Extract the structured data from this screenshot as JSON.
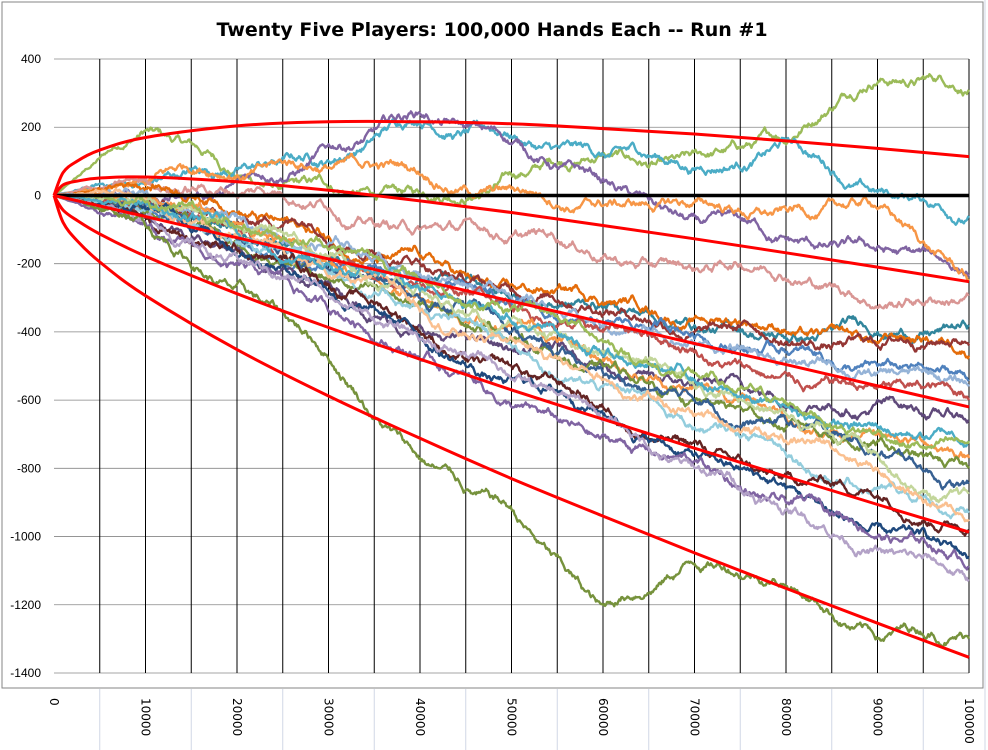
{
  "chart_data": {
    "type": "line",
    "title": "Twenty Five Players: 100,000 Hands Each -- Run #1",
    "xlabel": "",
    "ylabel": "",
    "xlim": [
      0,
      100000
    ],
    "ylim": [
      -1400,
      400
    ],
    "grid": {
      "vertical": true,
      "horizontal": true
    },
    "legend": "none",
    "x_ticks": [
      "0",
      "10000",
      "20000",
      "30000",
      "40000",
      "50000",
      "60000",
      "70000",
      "80000",
      "90000",
      "100000"
    ],
    "y_ticks": [
      "400",
      "200",
      "0",
      "-200",
      "-400",
      "-600",
      "-800",
      "-1000",
      "-1200",
      "-1400"
    ],
    "x": [
      0,
      10000,
      20000,
      30000,
      40000,
      50000,
      60000,
      70000,
      80000,
      90000,
      100000
    ],
    "series": [
      {
        "color": "#9BBB59",
        "values": [
          0,
          190,
          60,
          20,
          0,
          60,
          120,
          130,
          150,
          330,
          310
        ]
      },
      {
        "color": "#4BACC6",
        "values": [
          0,
          40,
          80,
          100,
          210,
          170,
          120,
          80,
          160,
          10,
          -60
        ]
      },
      {
        "color": "#8064A2",
        "values": [
          0,
          -20,
          40,
          150,
          240,
          150,
          50,
          -60,
          -130,
          -150,
          -230
        ]
      },
      {
        "color": "#F79646",
        "values": [
          0,
          30,
          60,
          80,
          60,
          20,
          -30,
          -20,
          -40,
          -40,
          -250
        ]
      },
      {
        "color": "#D99694",
        "values": [
          0,
          50,
          0,
          -40,
          -100,
          -120,
          -180,
          -220,
          -250,
          -330,
          -290
        ]
      },
      {
        "color": "#31859C",
        "values": [
          0,
          -30,
          -100,
          -200,
          -250,
          -300,
          -320,
          -380,
          -420,
          -400,
          -380
        ]
      },
      {
        "color": "#E46C0A",
        "values": [
          0,
          20,
          -50,
          -120,
          -180,
          -260,
          -320,
          -360,
          -400,
          -430,
          -470
        ]
      },
      {
        "color": "#943634",
        "values": [
          0,
          -10,
          -80,
          -150,
          -200,
          -280,
          -350,
          -400,
          -430,
          -440,
          -440
        ]
      },
      {
        "color": "#4F81BD",
        "values": [
          0,
          -40,
          -120,
          -200,
          -240,
          -320,
          -380,
          -420,
          -460,
          -500,
          -540
        ]
      },
      {
        "color": "#95B3D7",
        "values": [
          0,
          10,
          -60,
          -140,
          -230,
          -300,
          -380,
          -430,
          -480,
          -520,
          -560
        ]
      },
      {
        "color": "#C0504D",
        "values": [
          0,
          -20,
          -100,
          -180,
          -260,
          -330,
          -400,
          -460,
          -520,
          -560,
          -600
        ]
      },
      {
        "color": "#5F497A",
        "values": [
          0,
          -60,
          -150,
          -250,
          -380,
          -450,
          -500,
          -560,
          -620,
          -600,
          -660
        ]
      },
      {
        "color": "#F79646",
        "values": [
          0,
          0,
          -80,
          -200,
          -300,
          -380,
          -480,
          -560,
          -650,
          -700,
          -770
        ]
      },
      {
        "color": "#77933C",
        "values": [
          0,
          -50,
          -140,
          -240,
          -320,
          -420,
          -500,
          -600,
          -680,
          -720,
          -800
        ]
      },
      {
        "color": "#376092",
        "values": [
          0,
          -30,
          -130,
          -220,
          -300,
          -400,
          -520,
          -600,
          -660,
          -760,
          -840
        ]
      },
      {
        "color": "#C3D69B",
        "values": [
          0,
          -20,
          -100,
          -180,
          -270,
          -360,
          -460,
          -560,
          -640,
          -760,
          -870
        ]
      },
      {
        "color": "#93CDDD",
        "values": [
          0,
          -40,
          -140,
          -230,
          -330,
          -440,
          -560,
          -680,
          -760,
          -860,
          -930
        ]
      },
      {
        "color": "#FAC090",
        "values": [
          0,
          -10,
          -120,
          -240,
          -340,
          -420,
          -540,
          -640,
          -720,
          -800,
          -950
        ]
      },
      {
        "color": "#632423",
        "values": [
          0,
          -60,
          -160,
          -260,
          -400,
          -500,
          -620,
          -720,
          -820,
          -880,
          -980
        ]
      },
      {
        "color": "#1F497D",
        "values": [
          0,
          -40,
          -180,
          -280,
          -420,
          -540,
          -640,
          -760,
          -860,
          -960,
          -1060
        ]
      },
      {
        "color": "#8064A2",
        "values": [
          0,
          -80,
          -200,
          -340,
          -480,
          -620,
          -700,
          -780,
          -900,
          -1000,
          -1090
        ]
      },
      {
        "color": "#B3A2C7",
        "values": [
          0,
          -60,
          -180,
          -300,
          -420,
          -540,
          -660,
          -800,
          -920,
          -1040,
          -1130
        ]
      },
      {
        "color": "#76923C",
        "values": [
          0,
          -90,
          -260,
          -480,
          -770,
          -920,
          -1200,
          -1080,
          -1150,
          -1300,
          -1300
        ]
      },
      {
        "color": "#4BACC6",
        "values": [
          0,
          -20,
          -110,
          -200,
          -280,
          -370,
          -470,
          -540,
          -620,
          -680,
          -720
        ]
      },
      {
        "color": "#9BBB59",
        "values": [
          0,
          -20,
          -90,
          -160,
          -250,
          -330,
          -430,
          -520,
          -610,
          -690,
          -720
        ]
      }
    ],
    "reference_lines": {
      "color": "#FF0000",
      "x": [
        0,
        1000,
        2500,
        5000,
        10000,
        20000,
        30000,
        40000,
        50000,
        60000,
        70000,
        80000,
        90000,
        100000
      ],
      "curves": [
        [
          0,
          67,
          100,
          133,
          170,
          204,
          216,
          216,
          210,
          196,
          180,
          160,
          138,
          114
        ],
        [
          0,
          31,
          42,
          51,
          54,
          40,
          15,
          -16,
          -50,
          -88,
          -127,
          -168,
          -210,
          -253
        ],
        [
          0,
          -6,
          -15.5,
          -31,
          -62,
          -124,
          -186,
          -248,
          -310,
          -372,
          -434,
          -496,
          -558,
          -620
        ],
        [
          0,
          -43,
          -73,
          -113,
          -178,
          -288,
          -387,
          -480,
          -570,
          -656,
          -741,
          -824,
          -906,
          -987
        ],
        [
          0,
          -79,
          -132,
          -195,
          -294,
          -452,
          -588,
          -712,
          -830,
          -940,
          -1048,
          -1152,
          -1254,
          -1354
        ]
      ]
    },
    "zero_line": {
      "y": 0,
      "color": "#000000"
    }
  }
}
